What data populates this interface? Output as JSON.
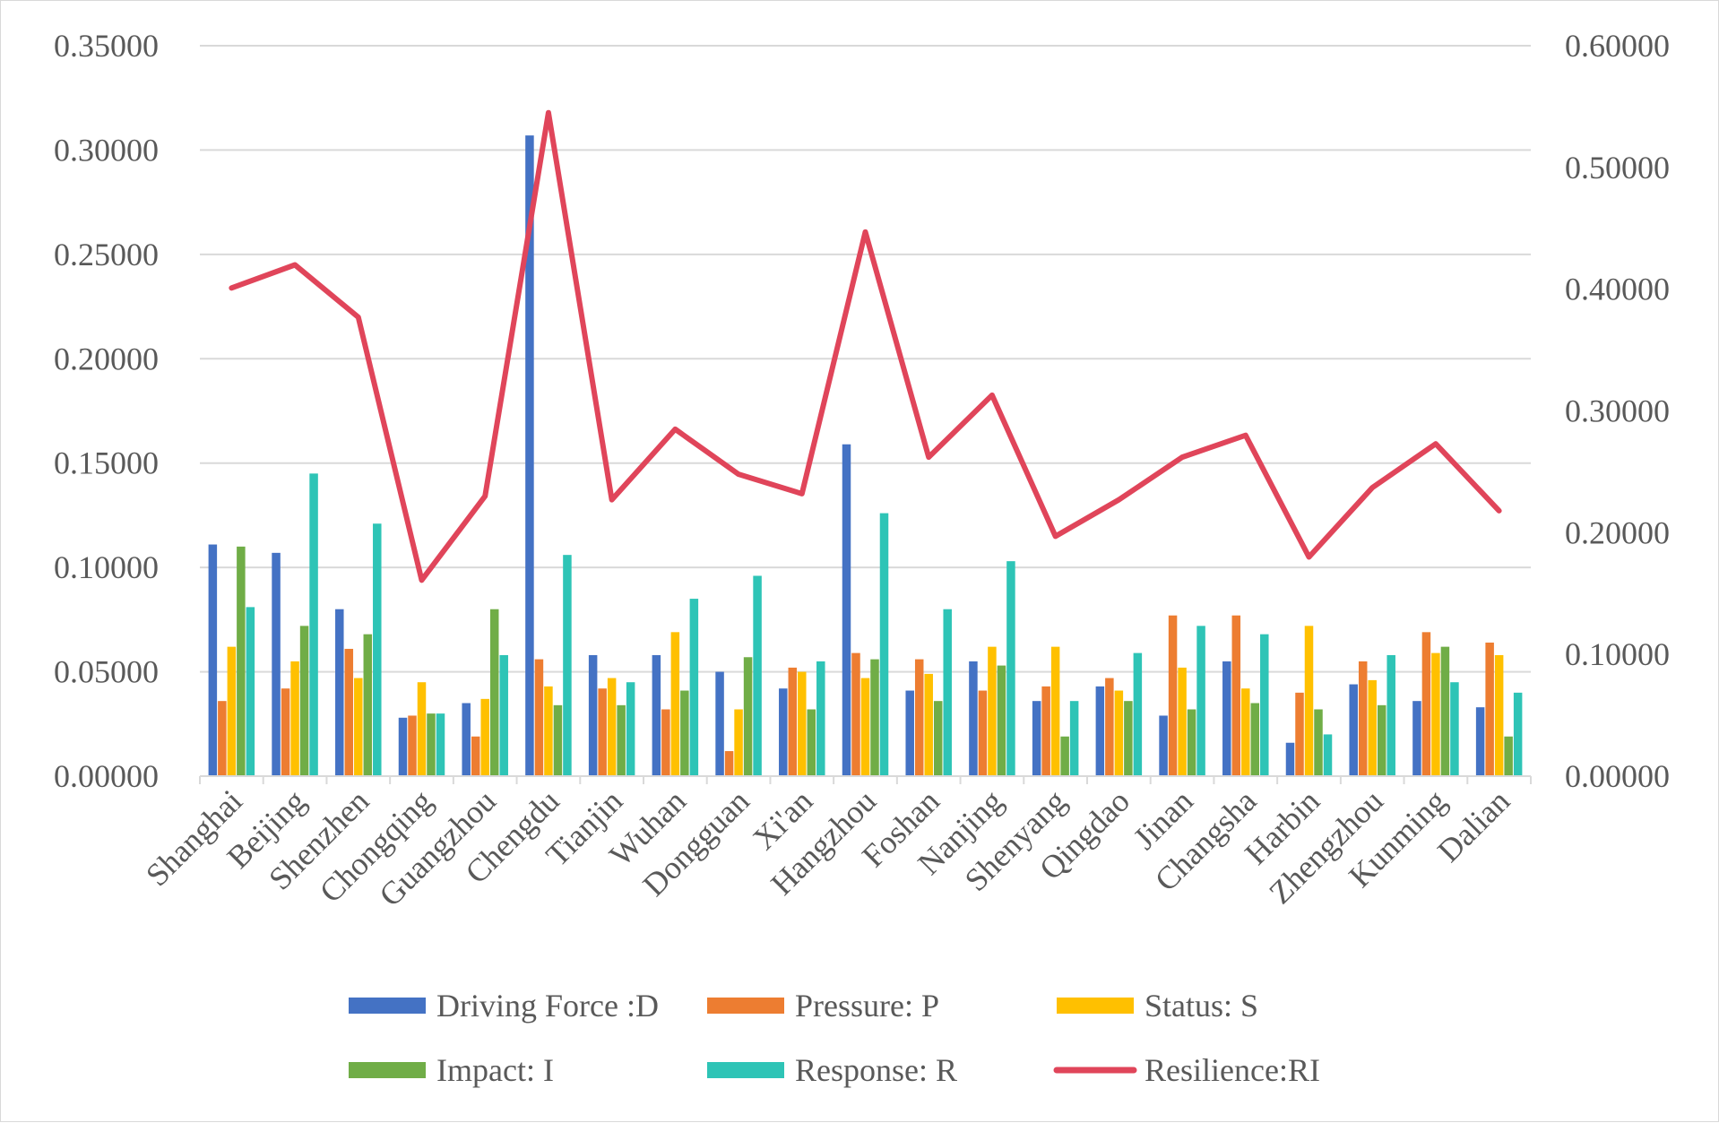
{
  "chart_data": {
    "type": "bar",
    "title": "",
    "xlabel": "",
    "ylabel": "",
    "y2label": "",
    "ylim": [
      0,
      0.35
    ],
    "y2lim": [
      0,
      0.6
    ],
    "y_ticks": [
      "0.00000",
      "0.05000",
      "0.10000",
      "0.15000",
      "0.20000",
      "0.25000",
      "0.30000",
      "0.35000"
    ],
    "y2_ticks": [
      "0.00000",
      "0.10000",
      "0.20000",
      "0.30000",
      "0.40000",
      "0.50000",
      "0.60000"
    ],
    "grid": "horizontal",
    "legend_position": "bottom",
    "categories": [
      "Shanghai",
      "Beijing",
      "Shenzhen",
      "Chongqing",
      "Guangzhou",
      "Chengdu",
      "Tianjin",
      "Wuhan",
      "Dongguan",
      "Xi'an",
      "Hangzhou",
      "Foshan",
      "Nanjing",
      "Shenyang",
      "Qingdao",
      "Jinan",
      "Changsha",
      "Harbin",
      "Zhengzhou",
      "Kunming",
      "Dalian"
    ],
    "series": [
      {
        "name": "Driving Force :D",
        "type": "bar",
        "axis": "left",
        "color": "#4472C4",
        "values": [
          0.111,
          0.107,
          0.08,
          0.028,
          0.035,
          0.307,
          0.058,
          0.058,
          0.05,
          0.042,
          0.159,
          0.041,
          0.055,
          0.036,
          0.043,
          0.029,
          0.055,
          0.016,
          0.044,
          0.036,
          0.033
        ]
      },
      {
        "name": "Pressure: P",
        "type": "bar",
        "axis": "left",
        "color": "#ED7D31",
        "values": [
          0.036,
          0.042,
          0.061,
          0.029,
          0.019,
          0.056,
          0.042,
          0.032,
          0.012,
          0.052,
          0.059,
          0.056,
          0.041,
          0.043,
          0.047,
          0.077,
          0.077,
          0.04,
          0.055,
          0.069,
          0.064
        ]
      },
      {
        "name": "Status: S",
        "type": "bar",
        "axis": "left",
        "color": "#FFC000",
        "values": [
          0.062,
          0.055,
          0.047,
          0.045,
          0.037,
          0.043,
          0.047,
          0.069,
          0.032,
          0.05,
          0.047,
          0.049,
          0.062,
          0.062,
          0.041,
          0.052,
          0.042,
          0.072,
          0.046,
          0.059,
          0.058
        ]
      },
      {
        "name": "Impact: I",
        "type": "bar",
        "axis": "left",
        "color": "#70AD47",
        "values": [
          0.11,
          0.072,
          0.068,
          0.03,
          0.08,
          0.034,
          0.034,
          0.041,
          0.057,
          0.032,
          0.056,
          0.036,
          0.053,
          0.019,
          0.036,
          0.032,
          0.035,
          0.032,
          0.034,
          0.062,
          0.019
        ]
      },
      {
        "name": "Response: R",
        "type": "bar",
        "axis": "left",
        "color": "#2EC4B6",
        "values": [
          0.081,
          0.145,
          0.121,
          0.03,
          0.058,
          0.106,
          0.045,
          0.085,
          0.096,
          0.055,
          0.126,
          0.08,
          0.103,
          0.036,
          0.059,
          0.072,
          0.068,
          0.02,
          0.058,
          0.045,
          0.04
        ]
      },
      {
        "name": "Resilience:RI",
        "type": "line",
        "axis": "right",
        "color": "#E0455A",
        "values": [
          0.401,
          0.42,
          0.377,
          0.161,
          0.23,
          0.545,
          0.227,
          0.285,
          0.248,
          0.232,
          0.447,
          0.262,
          0.313,
          0.197,
          0.227,
          0.262,
          0.28,
          0.18,
          0.237,
          0.273,
          0.218
        ]
      }
    ]
  }
}
